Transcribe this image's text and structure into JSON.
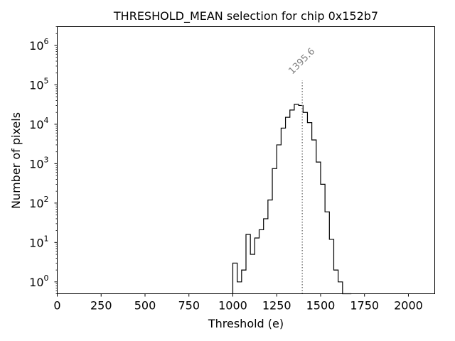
{
  "chart_data": {
    "type": "histogram",
    "title": "THRESHOLD_MEAN selection for chip 0x152b7",
    "xlabel": "Threshold (e)",
    "ylabel": "Number of pixels",
    "xlim": [
      0,
      2150
    ],
    "ylim": [
      0.5,
      3000000
    ],
    "yscale": "log",
    "x_ticks": [
      0,
      250,
      500,
      750,
      1000,
      1250,
      1500,
      1750,
      2000
    ],
    "x_tick_labels": [
      "0",
      "250",
      "500",
      "750",
      "1000",
      "1250",
      "1500",
      "1750",
      "2000"
    ],
    "y_ticks": [
      1,
      10,
      100,
      1000,
      10000,
      100000,
      1000000
    ],
    "y_tick_labels": [
      {
        "base": "10",
        "exp": "0"
      },
      {
        "base": "10",
        "exp": "1"
      },
      {
        "base": "10",
        "exp": "2"
      },
      {
        "base": "10",
        "exp": "3"
      },
      {
        "base": "10",
        "exp": "4"
      },
      {
        "base": "10",
        "exp": "5"
      },
      {
        "base": "10",
        "exp": "6"
      }
    ],
    "bin_edges": [
      1000,
      1025,
      1050,
      1075,
      1100,
      1125,
      1150,
      1175,
      1200,
      1225,
      1250,
      1275,
      1300,
      1325,
      1350,
      1375,
      1400,
      1425,
      1450,
      1475,
      1500,
      1525,
      1550,
      1575,
      1600,
      1625,
      1650,
      1675
    ],
    "counts": [
      3,
      1,
      2,
      16,
      5,
      13,
      21,
      40,
      120,
      750,
      3000,
      8000,
      15000,
      23000,
      32000,
      30000,
      20000,
      11000,
      4000,
      1100,
      300,
      60,
      12,
      2,
      1,
      0.5,
      0.5
    ],
    "vline": {
      "x": 1395.6,
      "label": "1395.6",
      "color": "#808080",
      "style": "dotted",
      "ymax": 130000
    }
  }
}
